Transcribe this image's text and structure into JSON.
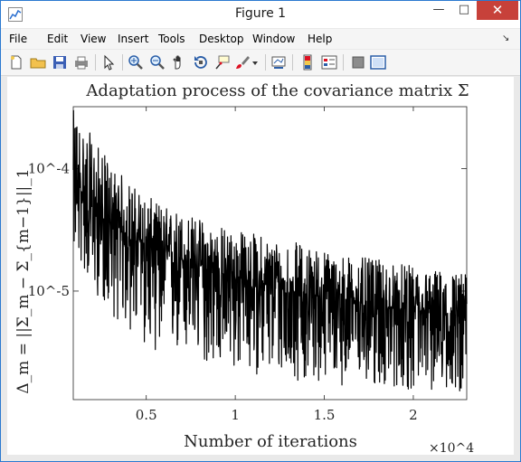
{
  "window": {
    "title": "Figure 1",
    "minimize_glyph": "—",
    "maximize_glyph": "□",
    "close_glyph": "✕"
  },
  "menu": {
    "items": [
      "File",
      "Edit",
      "View",
      "Insert",
      "Tools",
      "Desktop",
      "Window",
      "Help"
    ],
    "overflow_glyph": "↘"
  },
  "toolbar": {
    "icons": [
      "new-figure-icon",
      "open-file-icon",
      "save-icon",
      "print-icon",
      "edit-plot-arrow-icon",
      "zoom-in-icon",
      "zoom-out-icon",
      "pan-hand-icon",
      "rotate-3d-icon",
      "data-cursor-icon",
      "brush-icon",
      "brush-dropdown-icon",
      "link-plot-icon",
      "insert-colorbar-icon",
      "insert-legend-icon",
      "hide-plot-tools-icon",
      "show-plot-tools-icon"
    ]
  },
  "chart_data": {
    "type": "line",
    "title": "Adaptation process of the covariance matrix Σ",
    "xlabel": "Number of iterations",
    "ylabel": "Δ_m = ||Σ_m − Σ_{m−1}||_1",
    "x_exponent_label": "×10^4",
    "x_ticks": [
      0.5,
      1,
      1.5,
      2
    ],
    "x_tick_labels": [
      "0.5",
      "1",
      "1.5",
      "2"
    ],
    "y_ticks": [
      1e-05,
      0.0001
    ],
    "y_tick_labels": [
      "10^-5",
      "10^-4"
    ],
    "xlim": [
      900,
      23000
    ],
    "ylim": [
      1.3e-06,
      0.00032
    ],
    "y_scale": "log",
    "grid": false,
    "line_color": "#000000",
    "series": [
      {
        "x": [
          1000,
          2000,
          3000,
          4000,
          5000,
          6000,
          7000,
          8000,
          9000,
          10000,
          11000,
          12000,
          13000,
          14000,
          15000,
          16000,
          17000,
          18000,
          19000,
          20000,
          21000,
          22000,
          23000
        ],
        "values": [
          8e-05,
          4.5e-05,
          3.5e-05,
          2.8e-05,
          2.4e-05,
          2e-05,
          1.8e-05,
          1.6e-05,
          1.4e-05,
          1.3e-05,
          1.2e-05,
          1.1e-05,
          1e-05,
          9.5e-06,
          9e-06,
          8.5e-06,
          8e-06,
          7.5e-06,
          7e-06,
          6.8e-06,
          6.5e-06,
          6.2e-06,
          6e-06
        ],
        "band_low": [
          2e-05,
          1e-05,
          6.5e-06,
          4.5e-06,
          3.5e-06,
          3e-06,
          2.8e-06,
          2.6e-06,
          2.4e-06,
          2.2e-06,
          2.1e-06,
          2e-06,
          1.9e-06,
          1.8e-06,
          1.8e-06,
          1.7e-06,
          1.7e-06,
          1.6e-06,
          1.6e-06,
          1.5e-06,
          1.5e-06,
          1.5e-06,
          1.5e-06
        ],
        "band_high": [
          0.0003,
          0.00018,
          0.00011,
          8e-05,
          6e-05,
          5e-05,
          4.5e-05,
          4e-05,
          3.5e-05,
          3.2e-05,
          3e-05,
          2.8e-05,
          2.6e-05,
          2.4e-05,
          2.2e-05,
          2e-05,
          1.9e-05,
          1.8e-05,
          1.7e-05,
          1.6e-05,
          1.5e-05,
          1.5e-05,
          1.4e-05
        ]
      }
    ]
  }
}
